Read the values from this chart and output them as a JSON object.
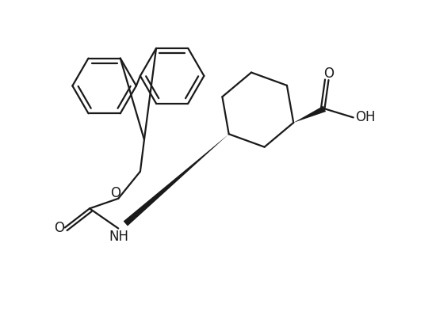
{
  "bg_color": "#ffffff",
  "bond_color": "#1a1a1a",
  "bond_width": 1.6,
  "font_size": 12,
  "text_color": "#1a1a1a",
  "xlim": [
    0,
    10
  ],
  "ylim": [
    0,
    8
  ],
  "figsize": [
    5.5,
    4.08
  ],
  "dpi": 100
}
